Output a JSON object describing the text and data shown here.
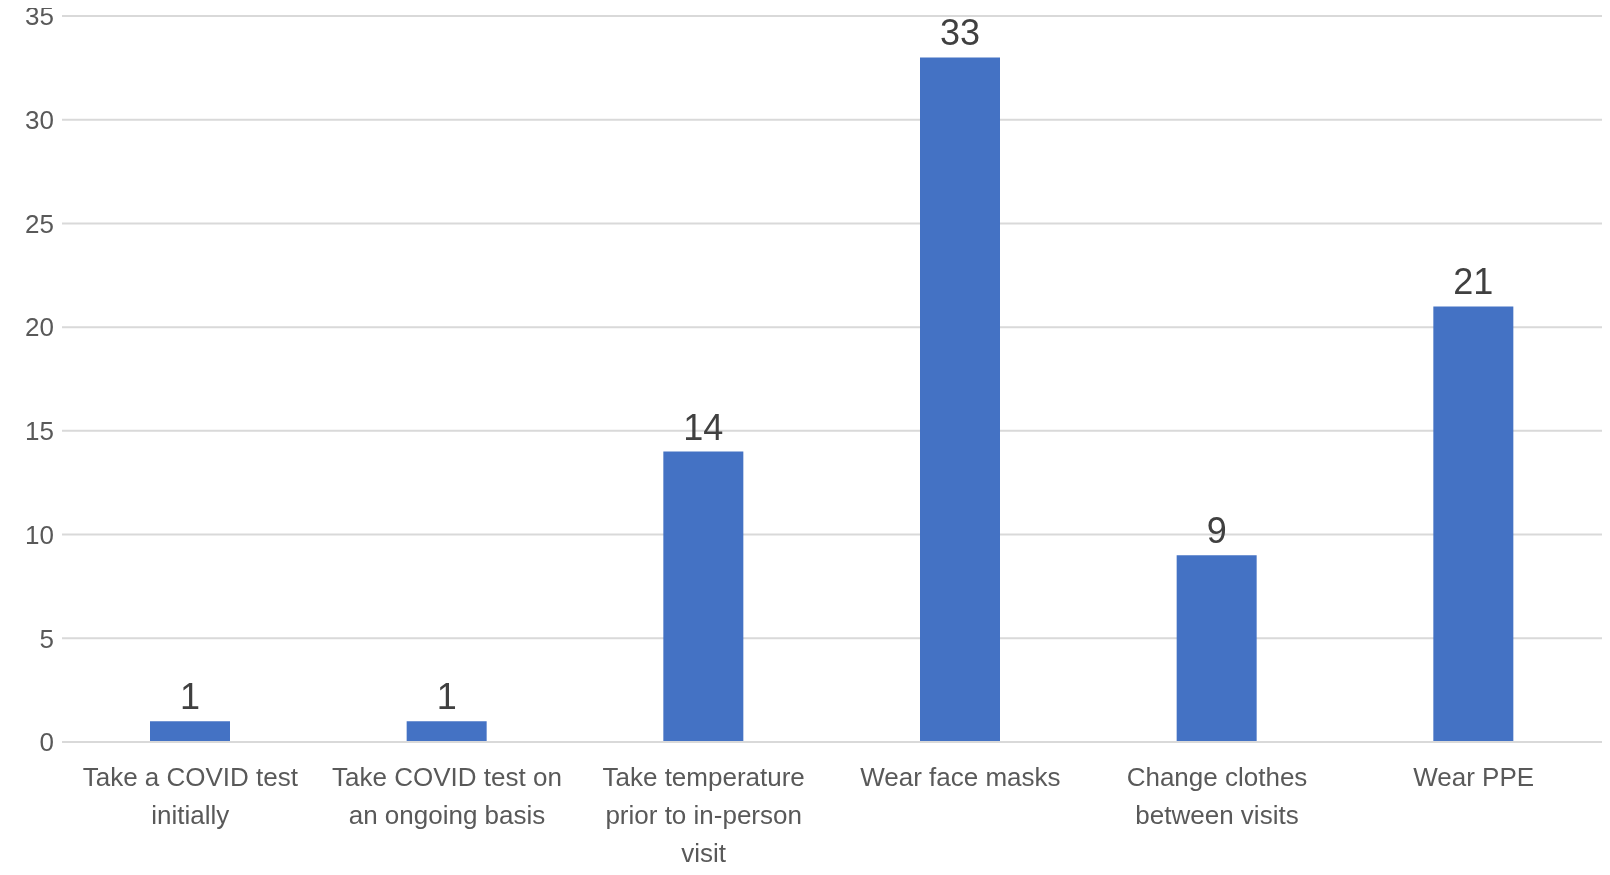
{
  "chart_data": {
    "type": "bar",
    "categories": [
      "Take a COVID test initially",
      "Take COVID test on an ongoing basis",
      "Take temperature prior to in-person visit",
      "Wear face masks",
      "Change clothes between visits",
      "Wear PPE"
    ],
    "values": [
      1,
      1,
      14,
      33,
      9,
      21
    ],
    "color": "#4472c4",
    "ylim": [
      0,
      35
    ],
    "yticks": [
      0,
      5,
      10,
      15,
      20,
      25,
      30,
      35
    ],
    "grid": "y",
    "data_labels": true
  }
}
